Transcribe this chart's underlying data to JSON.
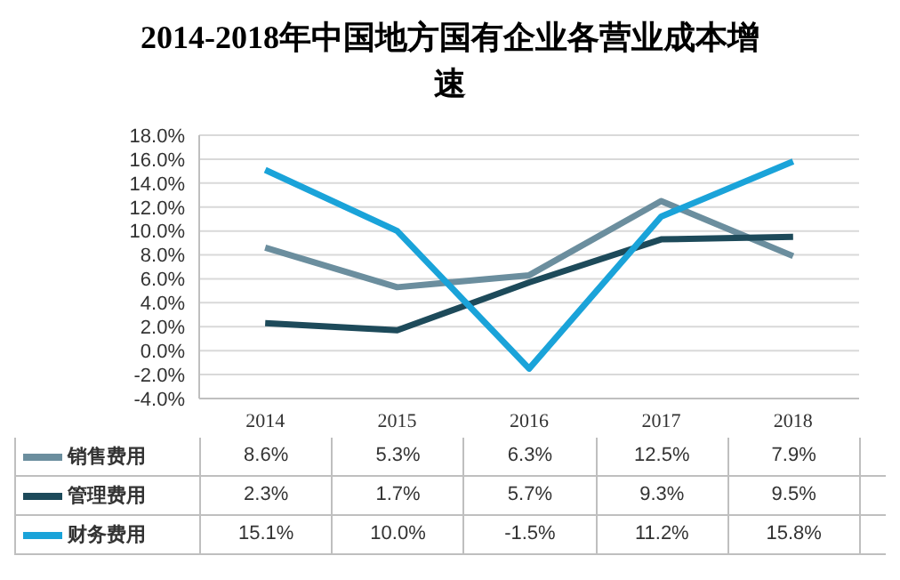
{
  "chart_data": {
    "type": "line",
    "title": "2014-2018年中国地方国有企业各营业成本增速",
    "categories": [
      "2014",
      "2015",
      "2016",
      "2017",
      "2018"
    ],
    "series": [
      {
        "name": "销售费用",
        "color": "#6b8e9e",
        "values": [
          8.6,
          5.3,
          6.3,
          12.5,
          7.9
        ],
        "value_labels": [
          "8.6%",
          "5.3%",
          "6.3%",
          "12.5%",
          "7.9%"
        ]
      },
      {
        "name": "管理费用",
        "color": "#1d4a5a",
        "values": [
          2.3,
          1.7,
          5.7,
          9.3,
          9.5
        ],
        "value_labels": [
          "2.3%",
          "1.7%",
          "5.7%",
          "9.3%",
          "9.5%"
        ]
      },
      {
        "name": "财务费用",
        "color": "#1aa3d9",
        "values": [
          15.1,
          10.0,
          -1.5,
          11.2,
          15.8
        ],
        "value_labels": [
          "15.1%",
          "10.0%",
          "-1.5%",
          "11.2%",
          "15.8%"
        ]
      }
    ],
    "ylim": [
      -4,
      18
    ],
    "yticks": [
      {
        "value": -4,
        "label": "-4.0%"
      },
      {
        "value": -2,
        "label": "-2.0%"
      },
      {
        "value": 0,
        "label": "0.0%"
      },
      {
        "value": 2,
        "label": "2.0%"
      },
      {
        "value": 4,
        "label": "4.0%"
      },
      {
        "value": 6,
        "label": "6.0%"
      },
      {
        "value": 8,
        "label": "8.0%"
      },
      {
        "value": 10,
        "label": "10.0%"
      },
      {
        "value": 12,
        "label": "12.0%"
      },
      {
        "value": 14,
        "label": "14.0%"
      },
      {
        "value": 16,
        "label": "16.0%"
      },
      {
        "value": 18,
        "label": "18.0%"
      }
    ],
    "grid": "y",
    "legend": "bottom",
    "marker": "none",
    "line_style": "solid"
  }
}
